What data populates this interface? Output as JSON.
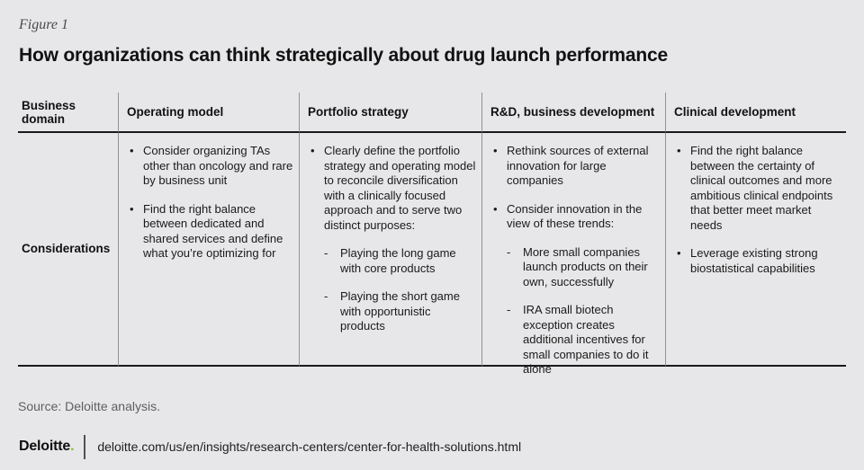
{
  "page": {
    "figure_label": "Figure 1",
    "title": "How organizations can think strategically about drug launch performance",
    "source": "Source: Deloitte analysis."
  },
  "colors": {
    "deloitte_green": "#86bc25",
    "background": "#e7e7e9",
    "rule_dark": "#1a1a1a",
    "rule_gray": "#939396"
  },
  "table": {
    "markers": {
      "l1": "•",
      "l2": "-"
    },
    "corner_header": "Business domain",
    "row_label": "Considerations",
    "columns": [
      {
        "header": "Operating model",
        "items": [
          {
            "level": 1,
            "text": "Consider organizing TAs other than oncology and rare by business unit"
          },
          {
            "level": 1,
            "text": "Find the right balance between dedicated and shared services and define what you’re optimizing for"
          }
        ]
      },
      {
        "header": "Portfolio strategy",
        "items": [
          {
            "level": 1,
            "text": "Clearly define the portfolio strategy and operating model to reconcile diversification with a clinically focused approach and to serve two distinct purposes:"
          },
          {
            "level": 2,
            "text": "Playing the long game with core products"
          },
          {
            "level": 2,
            "text": "Playing the short game with opportunistic products"
          }
        ]
      },
      {
        "header": "R&D, business development",
        "items": [
          {
            "level": 1,
            "text": "Rethink sources of external innovation for large companies"
          },
          {
            "level": 1,
            "text": "Consider innovation in the view of these trends:"
          },
          {
            "level": 2,
            "text": "More small companies launch products on their own, successfully"
          },
          {
            "level": 2,
            "text": "IRA small biotech exception creates additional incentives for small companies to do it alone"
          }
        ]
      },
      {
        "header": "Clinical development",
        "items": [
          {
            "level": 1,
            "text": "Find the right balance between the certainty of clinical outcomes and more ambitious clinical endpoints that better meet market needs"
          },
          {
            "level": 1,
            "text": "Leverage existing strong biostatistical capabilities"
          }
        ]
      }
    ]
  },
  "footer": {
    "logo_text": "Deloitte",
    "logo_dot": ".",
    "url": "deloitte.com/us/en/insights/research-centers/center-for-health-solutions.html"
  }
}
